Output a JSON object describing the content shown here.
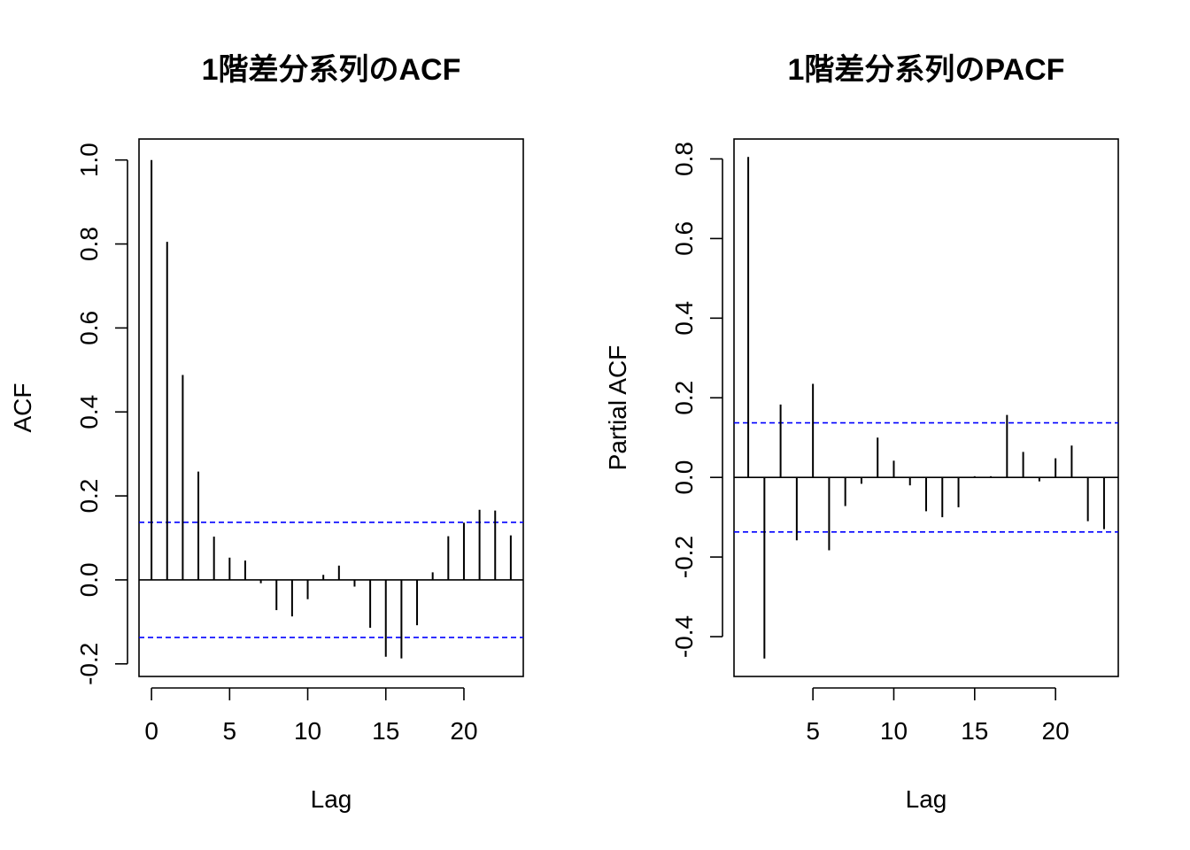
{
  "chart_data": [
    {
      "type": "bar",
      "title": "1階差分系列のACF",
      "xlabel": "Lag",
      "ylabel": "ACF",
      "x": [
        0,
        1,
        2,
        3,
        4,
        5,
        6,
        7,
        8,
        9,
        10,
        11,
        12,
        13,
        14,
        15,
        16,
        17,
        18,
        19,
        20,
        21,
        22,
        23
      ],
      "values": [
        1.0,
        0.805,
        0.488,
        0.258,
        0.103,
        0.053,
        0.046,
        -0.008,
        -0.072,
        -0.087,
        -0.046,
        0.012,
        0.034,
        -0.016,
        -0.114,
        -0.183,
        -0.187,
        -0.108,
        0.018,
        0.104,
        0.136,
        0.167,
        0.165,
        0.106
      ],
      "confidence_band": [
        0.137,
        -0.137
      ],
      "xlim": [
        -0.8,
        23.8
      ],
      "ylim": [
        -0.23,
        1.05
      ],
      "xticks": [
        "0",
        "5",
        "10",
        "15",
        "20"
      ],
      "yticks": [
        "-0.2",
        "0.0",
        "0.2",
        "0.4",
        "0.6",
        "0.8",
        "1.0"
      ],
      "band_color": "#0000ff",
      "bar_color": "#000000"
    },
    {
      "type": "bar",
      "title": "1階差分系列のPACF",
      "xlabel": "Lag",
      "ylabel": "Partial ACF",
      "x": [
        1,
        2,
        3,
        4,
        5,
        6,
        7,
        8,
        9,
        10,
        11,
        12,
        13,
        14,
        15,
        16,
        17,
        18,
        19,
        20,
        21,
        22,
        23
      ],
      "values": [
        0.805,
        -0.455,
        0.183,
        -0.158,
        0.235,
        -0.183,
        -0.072,
        -0.016,
        0.1,
        0.042,
        -0.02,
        -0.085,
        -0.1,
        -0.075,
        0.003,
        0.003,
        0.157,
        0.064,
        -0.01,
        0.048,
        0.08,
        -0.11,
        -0.13
      ],
      "confidence_band": [
        0.137,
        -0.137
      ],
      "xlim": [
        0.12,
        23.88
      ],
      "ylim": [
        -0.5,
        0.85
      ],
      "xticks": [
        "5",
        "10",
        "15",
        "20"
      ],
      "yticks": [
        "-0.4",
        "-0.2",
        "0.0",
        "0.2",
        "0.4",
        "0.6",
        "0.8"
      ],
      "band_color": "#0000ff",
      "bar_color": "#000000"
    }
  ]
}
